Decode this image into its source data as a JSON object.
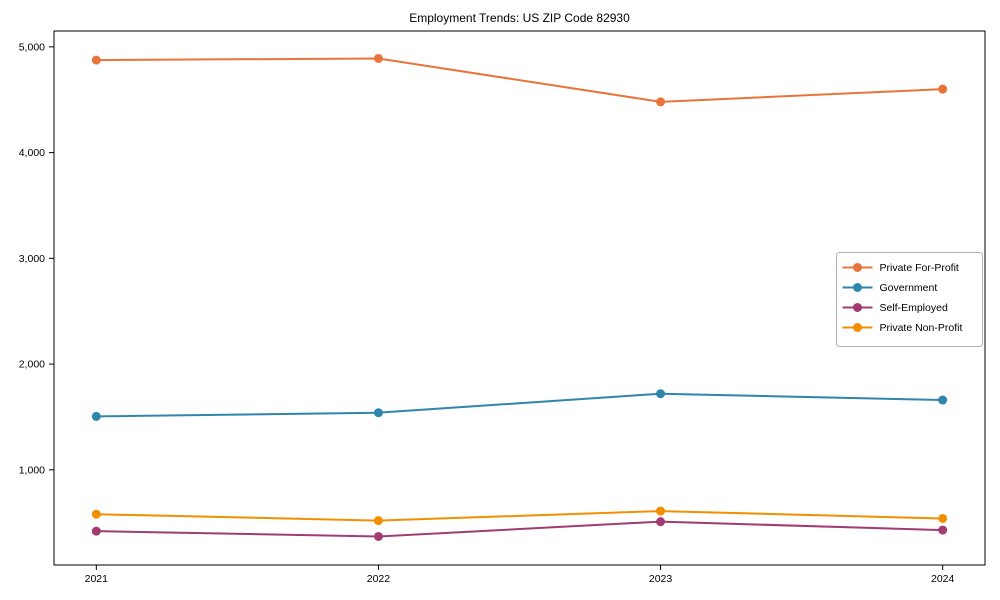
{
  "page": {
    "title": "Employment Trends: US ZIP Code 82930"
  },
  "chart_data": {
    "type": "line",
    "title": "Employment Trends: US ZIP Code 82930",
    "xlabel": "",
    "ylabel": "",
    "categories": [
      2021,
      2022,
      2023,
      2024
    ],
    "x_tick_labels": [
      "2021",
      "2022",
      "2023",
      "2024"
    ],
    "y_ticks": [
      1000,
      2000,
      3000,
      4000,
      5000
    ],
    "y_tick_labels": [
      "1,000",
      "2,000",
      "3,000",
      "4,000",
      "5,000"
    ],
    "xlim": [
      2020.85,
      2024.15
    ],
    "ylim": [
      100,
      5150
    ],
    "grid": false,
    "legend_position": "center-right",
    "marker": "circle",
    "line_width": 2,
    "marker_radius": 4.5,
    "series": [
      {
        "name": "Private For-Profit",
        "color": "#E8743B",
        "values": [
          4875,
          4890,
          4480,
          4600
        ]
      },
      {
        "name": "Government",
        "color": "#2E86AB",
        "values": [
          1505,
          1540,
          1720,
          1660
        ]
      },
      {
        "name": "Self-Employed",
        "color": "#A23B72",
        "values": [
          420,
          370,
          510,
          430
        ]
      },
      {
        "name": "Private Non-Profit",
        "color": "#F18F01",
        "values": [
          580,
          520,
          610,
          540
        ]
      }
    ],
    "frame_color": "#000000",
    "legend_border_color": "#b3b3b3",
    "background_color": "#ffffff"
  }
}
